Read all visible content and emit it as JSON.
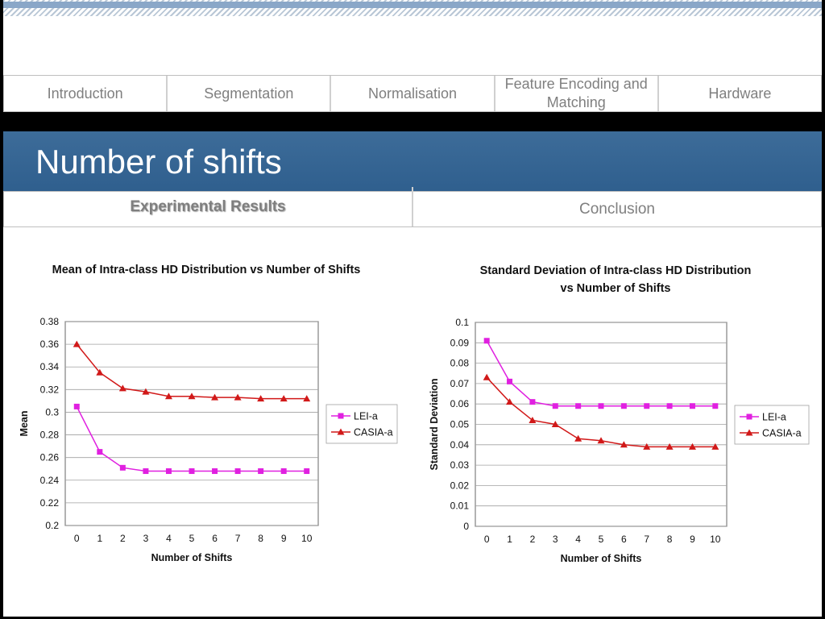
{
  "nav": {
    "tabs": [
      "Introduction",
      "Segmentation",
      "Normalisation",
      "Feature Encoding and Matching",
      "Hardware"
    ]
  },
  "header": {
    "title": "Number of shifts"
  },
  "subnav": {
    "tabs": [
      "Experimental Results",
      "Conclusion"
    ],
    "active": 0
  },
  "colors": {
    "lei": "#e020e0",
    "casia": "#d11919",
    "title_bar": "#2f5f8e"
  },
  "chart_data": [
    {
      "type": "line",
      "title": "Mean of Intra-class HD Distribution vs Number of Shifts",
      "xlabel": "Number of Shifts",
      "ylabel": "Mean",
      "x": [
        0,
        1,
        2,
        3,
        4,
        5,
        6,
        7,
        8,
        9,
        10
      ],
      "ylim": [
        0.2,
        0.38
      ],
      "yticks": [
        "0.2",
        "0.22",
        "0.24",
        "0.26",
        "0.28",
        "0.3",
        "0.32",
        "0.34",
        "0.36",
        "0.38"
      ],
      "grid": true,
      "legend": "right",
      "series": [
        {
          "name": "LEI-a",
          "marker": "square",
          "values": [
            0.305,
            0.265,
            0.251,
            0.248,
            0.248,
            0.248,
            0.248,
            0.248,
            0.248,
            0.248,
            0.248
          ]
        },
        {
          "name": "CASIA-a",
          "marker": "triangle",
          "values": [
            0.36,
            0.335,
            0.321,
            0.318,
            0.314,
            0.314,
            0.313,
            0.313,
            0.312,
            0.312,
            0.312
          ]
        }
      ]
    },
    {
      "type": "line",
      "title": "Standard Deviation of Intra-class HD Distribution vs Number of Shifts",
      "xlabel": "Number of Shifts",
      "ylabel": "Standard Deviation",
      "x": [
        0,
        1,
        2,
        3,
        4,
        5,
        6,
        7,
        8,
        9,
        10
      ],
      "ylim": [
        0,
        0.1
      ],
      "yticks": [
        "0",
        "0.01",
        "0.02",
        "0.03",
        "0.04",
        "0.05",
        "0.06",
        "0.07",
        "0.08",
        "0.09",
        "0.1"
      ],
      "grid": true,
      "legend": "right",
      "series": [
        {
          "name": "LEI-a",
          "marker": "square",
          "values": [
            0.091,
            0.071,
            0.061,
            0.059,
            0.059,
            0.059,
            0.059,
            0.059,
            0.059,
            0.059,
            0.059
          ]
        },
        {
          "name": "CASIA-a",
          "marker": "triangle",
          "values": [
            0.073,
            0.061,
            0.052,
            0.05,
            0.043,
            0.042,
            0.04,
            0.039,
            0.039,
            0.039,
            0.039
          ]
        }
      ]
    }
  ]
}
